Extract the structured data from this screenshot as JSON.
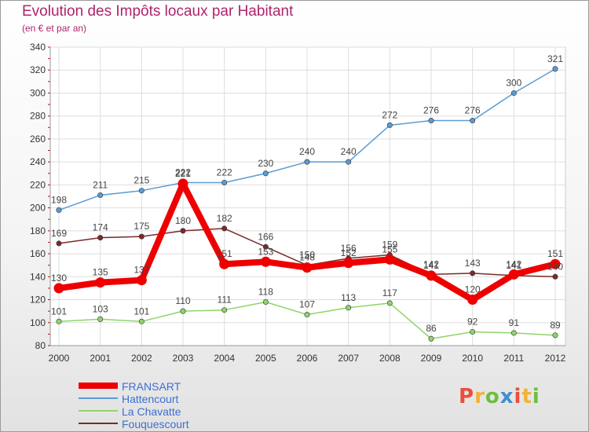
{
  "header": {
    "title": "Evolution des Impôts locaux par Habitant",
    "subtitle": "(en € et par an)"
  },
  "logo": {
    "text": "Proxiti",
    "colors": [
      "#e8503a",
      "#f2b233",
      "#6cbf3c",
      "#3d8fd1",
      "#e8503a",
      "#f2b233",
      "#6cbf3c"
    ]
  },
  "chart_data": {
    "type": "line",
    "title": "Evolution des Impôts locaux par Habitant",
    "subtitle": "(en € et par an)",
    "x": [
      "2000",
      "2001",
      "2002",
      "2003",
      "2004",
      "2005",
      "2006",
      "2007",
      "2008",
      "2009",
      "2010",
      "2011",
      "2012"
    ],
    "ylim": [
      80,
      340
    ],
    "yticks": [
      80,
      100,
      120,
      140,
      160,
      180,
      200,
      220,
      240,
      260,
      280,
      300,
      320,
      340
    ],
    "grid": true,
    "legend_position": "bottom-left",
    "series": [
      {
        "name": "FRANSART",
        "color": "#ee0000",
        "values": [
          130,
          135,
          137,
          221,
          151,
          153,
          148,
          152,
          155,
          141,
          120,
          142,
          151
        ]
      },
      {
        "name": "Hattencourt",
        "color": "#5b9bd5",
        "values": [
          198,
          211,
          215,
          222,
          222,
          230,
          240,
          240,
          272,
          276,
          276,
          300,
          321
        ]
      },
      {
        "name": "La Chavatte",
        "color": "#8fd46a",
        "values": [
          101,
          103,
          101,
          110,
          111,
          118,
          107,
          113,
          117,
          86,
          92,
          91,
          89
        ]
      },
      {
        "name": "Fouquescourt",
        "color": "#7a2a2a",
        "values": [
          169,
          174,
          175,
          180,
          182,
          166,
          150,
          156,
          159,
          142,
          143,
          141,
          140
        ]
      }
    ]
  }
}
